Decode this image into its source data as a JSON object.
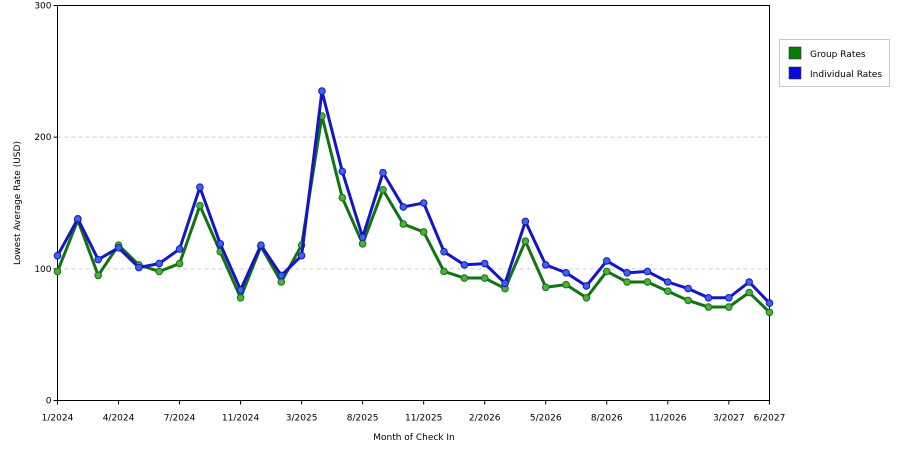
{
  "chart_data": {
    "type": "line",
    "xlabel": "Month of Check In",
    "ylabel": "Lowest Average Rate (USD)",
    "ylim": [
      0,
      300
    ],
    "yticks": [
      "0",
      "100",
      "200",
      "300"
    ],
    "grid": "horizontal-dashed",
    "legend": "top-right",
    "x_tick_labels": [
      "1/2024",
      "4/2024",
      "7/2024",
      "11/2024",
      "3/2025",
      "8/2025",
      "11/2025",
      "2/2026",
      "5/2026",
      "8/2026",
      "11/2026",
      "3/2027",
      "6/2027"
    ],
    "x_tick_positions": [
      0,
      3,
      6,
      9,
      12,
      15,
      18,
      21,
      24,
      27,
      30,
      33,
      35
    ],
    "x": [
      0,
      1,
      2,
      3,
      4,
      5,
      6,
      7,
      8,
      9,
      10,
      11,
      12,
      13,
      14,
      15,
      16,
      17,
      18,
      19,
      20,
      21,
      22,
      23,
      24,
      25,
      26,
      27,
      28,
      29,
      30,
      31,
      32,
      33,
      34,
      35
    ],
    "series": [
      {
        "name": "Group Rates",
        "color": "#127312",
        "legend_color": "#0a7a0a",
        "marker_color": "#4caf3c",
        "values": [
          98,
          137,
          95,
          118,
          103,
          98,
          104,
          148,
          113,
          78,
          117,
          90,
          118,
          216,
          154,
          119,
          160,
          134,
          128,
          98,
          93,
          93,
          85,
          121,
          86,
          88,
          78,
          98,
          90,
          90,
          83,
          76,
          71,
          71,
          82,
          67
        ]
      },
      {
        "name": "Individual Rates",
        "color": "#1515c8",
        "legend_color": "#0a0ae0",
        "marker_color": "#3c64e6",
        "values": [
          110,
          138,
          107,
          116,
          101,
          104,
          115,
          162,
          119,
          84,
          118,
          95,
          110,
          235,
          174,
          124,
          173,
          147,
          150,
          113,
          103,
          104,
          89,
          136,
          103,
          97,
          87,
          106,
          97,
          98,
          90,
          85,
          78,
          78,
          90,
          74
        ]
      }
    ]
  }
}
